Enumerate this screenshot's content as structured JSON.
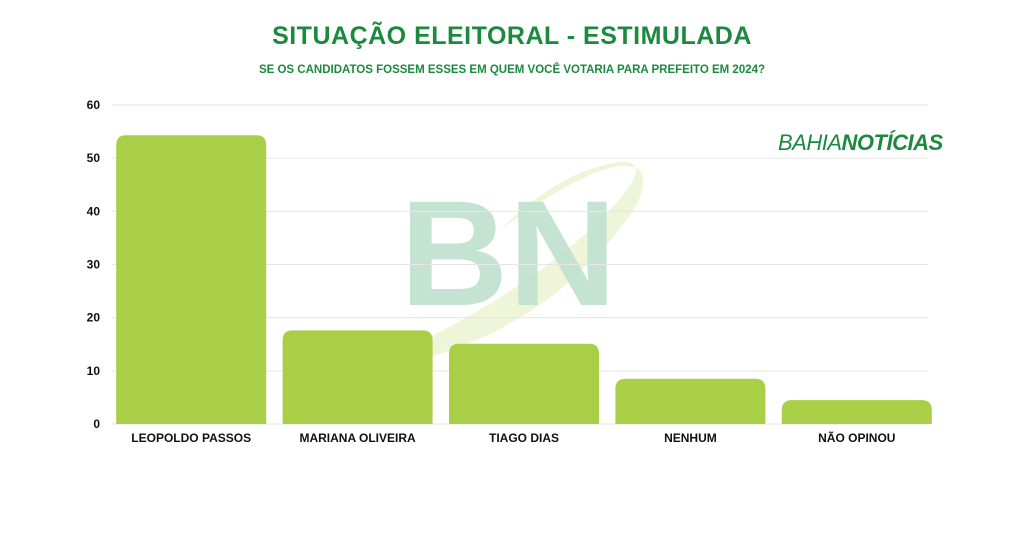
{
  "header": {
    "title": "SITUAÇÃO ELEITORAL - ESTIMULADA",
    "subtitle": "SE OS CANDIDATOS FOSSEM ESSES EM QUEM VOCÊ VOTARIA PARA PREFEITO EM 2024?"
  },
  "brand": {
    "part1": "BAHIA",
    "part2": "NOTÍCIAS",
    "watermark": "BN"
  },
  "colors": {
    "bar": "#a8cf45",
    "title": "#1b8a3e",
    "grid": "#e6e6e6",
    "watermark": "#bfe0cf"
  },
  "chart_data": {
    "type": "bar",
    "title": "SITUAÇÃO ELEITORAL - ESTIMULADA",
    "subtitle": "SE OS CANDIDATOS FOSSEM ESSES EM QUEM VOCÊ VOTARIA PARA PREFEITO EM 2024?",
    "categories": [
      "LEOPOLDO PASSOS",
      "MARIANA OLIVEIRA",
      "TIAGO DIAS",
      "NENHUM",
      "NÃO OPINOU"
    ],
    "values": [
      54.3,
      17.6,
      15.1,
      8.5,
      4.5
    ],
    "ylim": [
      0,
      60
    ],
    "yticks": [
      0,
      10,
      20,
      30,
      40,
      50,
      60
    ],
    "grid": true,
    "xlabel": "",
    "ylabel": ""
  }
}
